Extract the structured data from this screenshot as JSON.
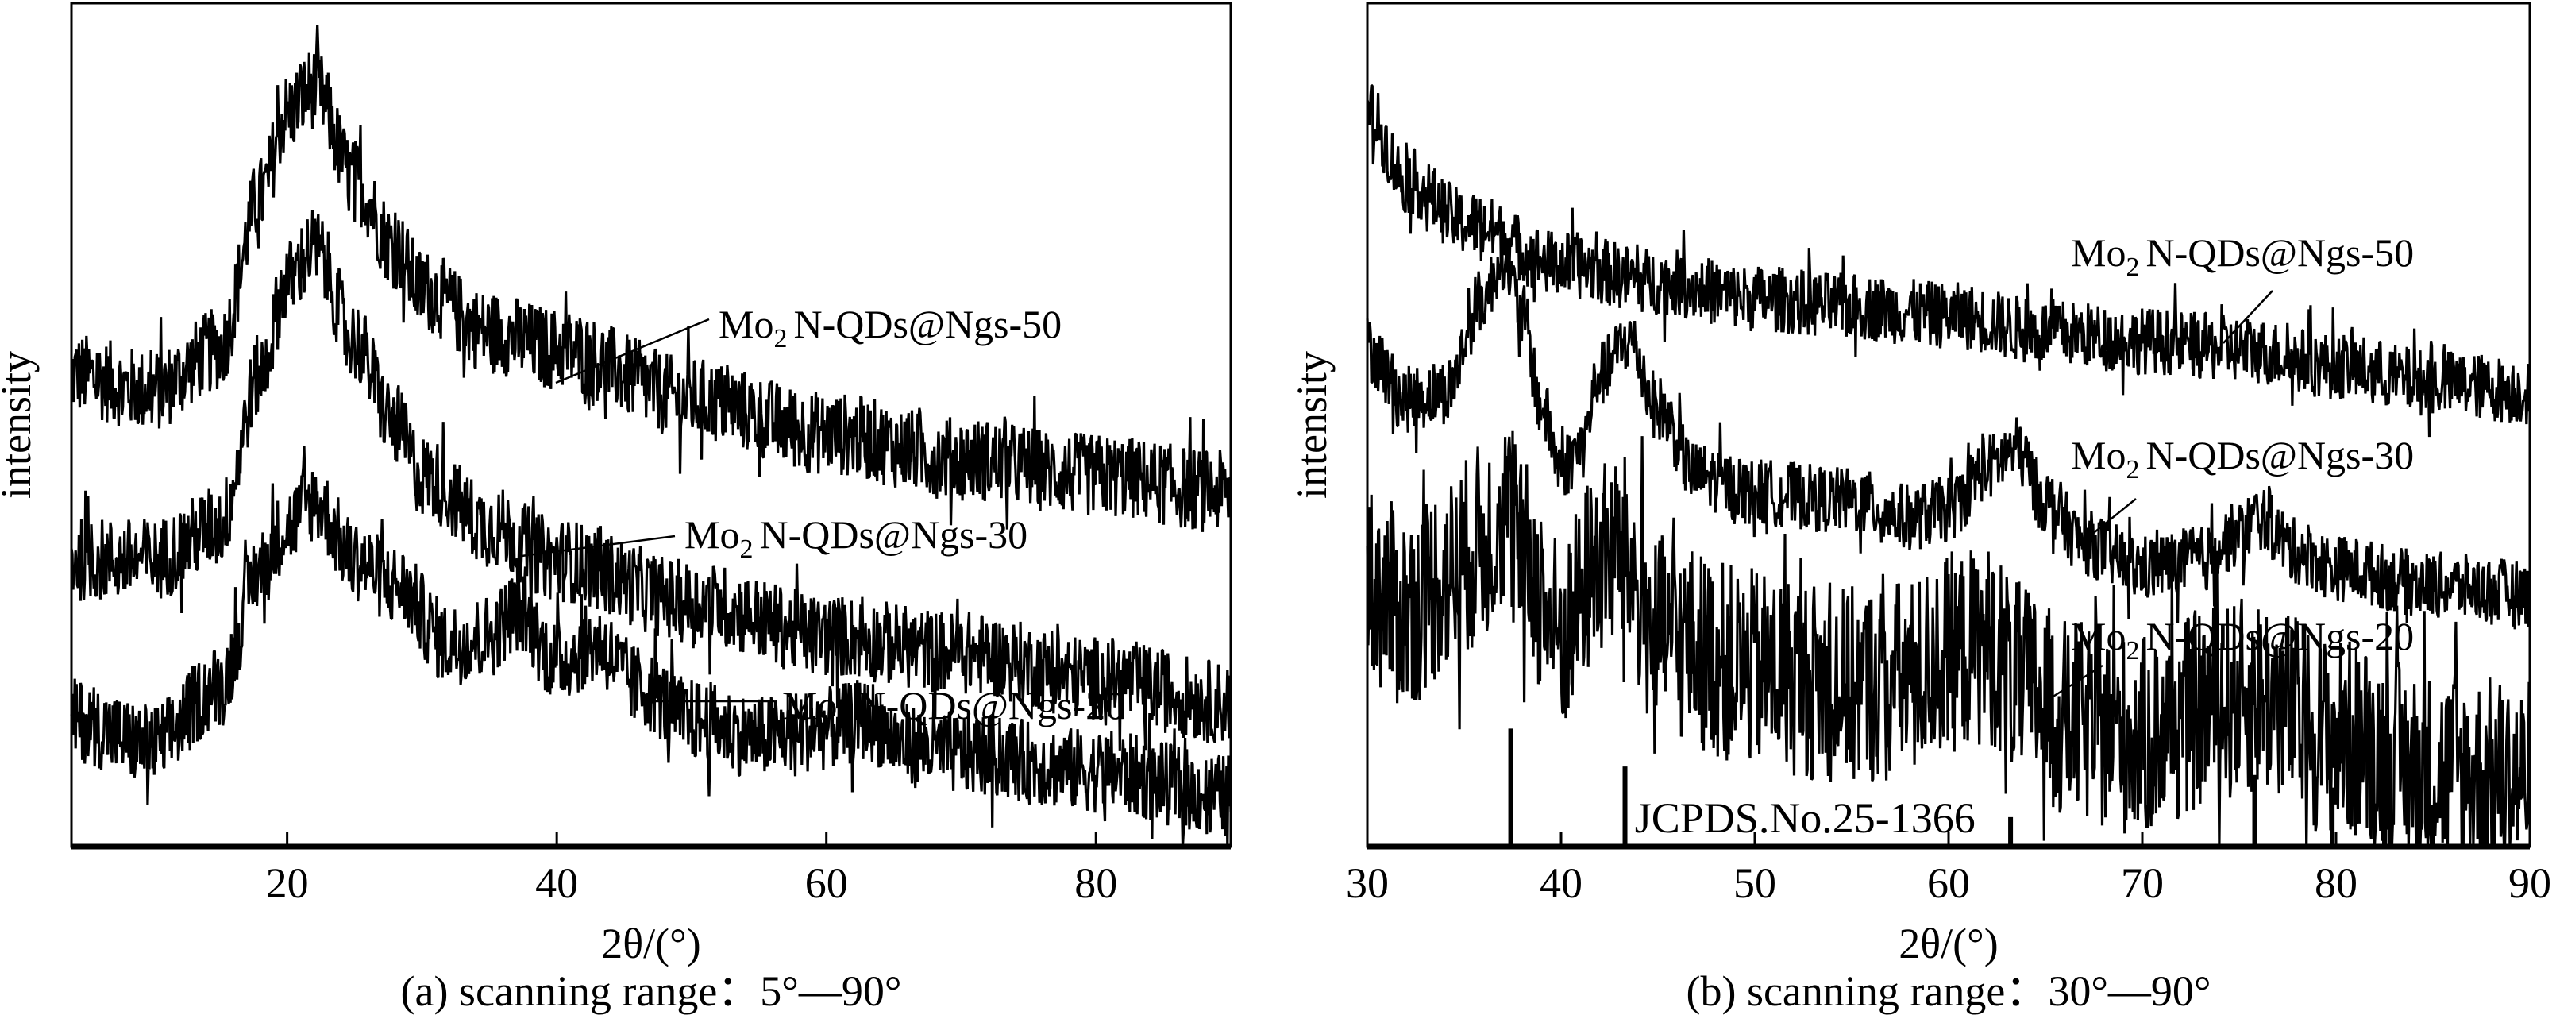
{
  "chart_data": [
    {
      "type": "line",
      "panel": "a",
      "caption": "(a) scanning range：5°—90°",
      "xlabel": "2θ/(°)",
      "ylabel": "intensity",
      "xlim": [
        4,
        90
      ],
      "ylim": [
        0,
        100
      ],
      "xticks": [
        20,
        40,
        60,
        80
      ],
      "yticks": [],
      "grid": false,
      "legend": "none (inline labels with leader lines)",
      "color": "#000000",
      "series": [
        {
          "name": "Mo2N-QDs@Ngs-50",
          "noise": 5,
          "x": [
            4,
            10,
            15,
            18,
            20,
            22,
            25,
            28,
            30,
            35,
            40,
            50,
            60,
            70,
            80,
            90
          ],
          "y": [
            56,
            54,
            59,
            77,
            87,
            90,
            79,
            71,
            66,
            61,
            59,
            53,
            49,
            46,
            44,
            42
          ]
        },
        {
          "name": "Mo2N-QDs@Ngs-30",
          "noise": 5,
          "x": [
            4,
            10,
            15,
            18,
            20,
            22,
            25,
            28,
            30,
            35,
            40,
            50,
            60,
            70,
            80,
            90
          ],
          "y": [
            34,
            34,
            38,
            56,
            67,
            71,
            60,
            50,
            44,
            38,
            34,
            29,
            25,
            23,
            20,
            17
          ]
        },
        {
          "name": "Mo2N-QDs@Ngs-20",
          "noise": 5,
          "x": [
            4,
            10,
            15,
            18,
            20,
            22,
            25,
            28,
            32,
            35,
            37,
            40,
            43,
            46,
            50,
            55,
            60,
            63,
            66,
            70,
            80,
            90
          ],
          "y": [
            15,
            12,
            19,
            33,
            38,
            41,
            34,
            31,
            24,
            25,
            28,
            22,
            24,
            19,
            15,
            13,
            14,
            15,
            12,
            11,
            9,
            6
          ]
        }
      ]
    },
    {
      "type": "line",
      "panel": "b",
      "caption": "(b) scanning range：30°—90°",
      "xlabel": "2θ/(°)",
      "ylabel": "intensity",
      "xlim": [
        30,
        90
      ],
      "ylim": [
        0,
        100
      ],
      "xticks": [
        30,
        40,
        50,
        60,
        70,
        80,
        90
      ],
      "yticks": [],
      "grid": false,
      "legend": "none (inline labels with leader lines)",
      "color": "#000000",
      "series": [
        {
          "name": "Mo2N-QDs@Ngs-50",
          "noise": 4,
          "x": [
            30,
            32,
            35,
            40,
            45,
            50,
            55,
            60,
            65,
            70,
            75,
            80,
            85,
            90
          ],
          "y": [
            87,
            79,
            74,
            69,
            67,
            65,
            64,
            63,
            61,
            60,
            59,
            57,
            55,
            54
          ]
        },
        {
          "name": "Mo2N-QDs@Ngs-30",
          "noise": 4,
          "x": [
            30,
            32,
            34,
            36,
            37,
            38,
            39,
            40,
            41,
            42,
            43.5,
            45,
            47,
            50,
            55,
            58,
            60,
            62,
            63.5,
            65,
            67,
            70,
            73,
            75,
            76,
            78,
            80,
            85,
            90
          ],
          "y": [
            59,
            53,
            54,
            65,
            70,
            63,
            52,
            45,
            47,
            56,
            60,
            52,
            44,
            42,
            41,
            39,
            40,
            45,
            47,
            41,
            36,
            33,
            34,
            37,
            39,
            35,
            33,
            31,
            30
          ]
        },
        {
          "name": "Mo2N-QDs@Ngs-20",
          "noise": 12,
          "x": [
            30,
            32,
            34,
            36,
            37,
            38,
            40,
            42,
            43,
            45,
            50,
            55,
            58,
            60,
            62,
            64,
            66,
            70,
            74,
            76,
            80,
            85,
            90
          ],
          "y": [
            31,
            28,
            32,
            36,
            40,
            34,
            25,
            34,
            35,
            25,
            21,
            19,
            20,
            23,
            24,
            19,
            15,
            13,
            17,
            18,
            13,
            9,
            8
          ]
        }
      ],
      "reference": {
        "label": "JCPDS.No.25-1366",
        "positions": [
          37.4,
          43.3,
          63.2,
          75.8,
          79.8,
          82.5
        ],
        "heights": [
          14,
          9.5,
          3.5,
          8.5,
          7,
          4
        ]
      }
    }
  ]
}
